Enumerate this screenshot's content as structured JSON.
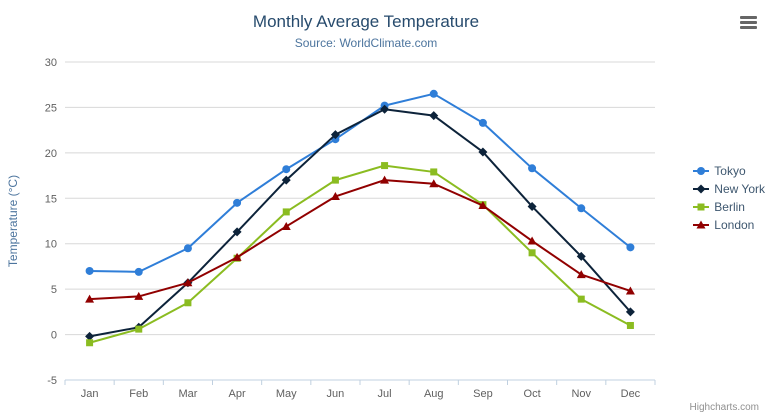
{
  "icons": {
    "export_menu": "hamburger-icon"
  },
  "credits": {
    "label": "Highcharts.com"
  },
  "chart_data": {
    "type": "line",
    "title": "Monthly Average Temperature",
    "subtitle": "Source: WorldClimate.com",
    "xlabel": "",
    "ylabel": "Temperature (°C)",
    "ylim": [
      -5,
      30
    ],
    "ytick_interval": 5,
    "grid": true,
    "legend_position": "right",
    "categories": [
      "Jan",
      "Feb",
      "Mar",
      "Apr",
      "May",
      "Jun",
      "Jul",
      "Aug",
      "Sep",
      "Oct",
      "Nov",
      "Dec"
    ],
    "series": [
      {
        "name": "Tokyo",
        "color": "#2f7ed8",
        "marker": "circle",
        "values": [
          7.0,
          6.9,
          9.5,
          14.5,
          18.2,
          21.5,
          25.2,
          26.5,
          23.3,
          18.3,
          13.9,
          9.6
        ]
      },
      {
        "name": "New York",
        "color": "#0d233a",
        "marker": "diamond",
        "values": [
          -0.2,
          0.8,
          5.7,
          11.3,
          17.0,
          22.0,
          24.8,
          24.1,
          20.1,
          14.1,
          8.6,
          2.5
        ]
      },
      {
        "name": "Berlin",
        "color": "#8bbc21",
        "marker": "square",
        "values": [
          -0.9,
          0.6,
          3.5,
          8.4,
          13.5,
          17.0,
          18.6,
          17.9,
          14.3,
          9.0,
          3.9,
          1.0
        ]
      },
      {
        "name": "London",
        "color": "#910000",
        "marker": "triangle",
        "values": [
          3.9,
          4.2,
          5.7,
          8.5,
          11.9,
          15.2,
          17.0,
          16.6,
          14.2,
          10.3,
          6.6,
          4.8
        ]
      }
    ]
  }
}
